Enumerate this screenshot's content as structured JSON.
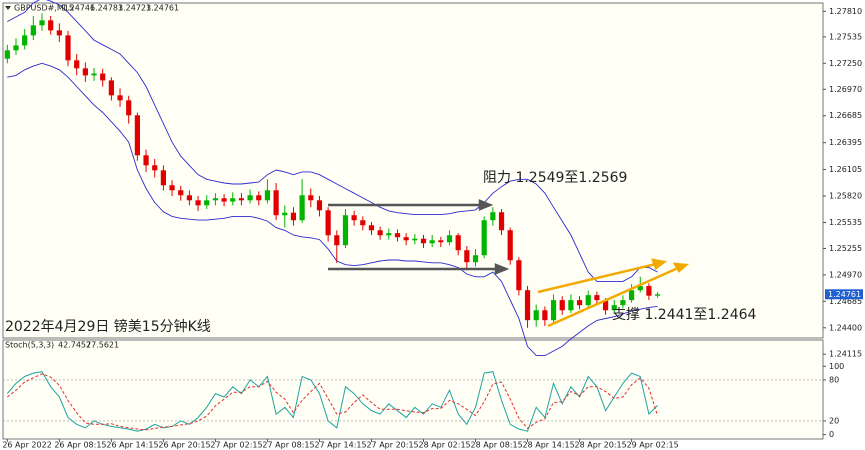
{
  "chart_data": [
    {
      "type": "candlestick",
      "symbol": "GBPUSD#,M15",
      "title": "2022年4月29日 镑美15分钟K线",
      "annotations": [
        "阻力 1.2549至1.2569",
        "支撑 1.2441至1.2464"
      ],
      "categories": [
        "26 Apr 2022",
        null,
        null,
        null,
        null,
        null,
        "26 Apr 08:15",
        null,
        null,
        null,
        null,
        null,
        "26 Apr 14:15",
        null,
        null,
        null,
        null,
        null,
        "26 Apr 20:15",
        null,
        null,
        null,
        null,
        null,
        "27 Apr 02:15",
        null,
        null,
        null,
        null,
        null,
        "27 Apr 08:15",
        null,
        null,
        null,
        null,
        null,
        "27 Apr 14:15",
        null,
        null,
        null,
        null,
        null,
        "27 Apr 20:15",
        null,
        null,
        null,
        null,
        null,
        "28 Apr 02:15",
        null,
        null,
        null,
        null,
        null,
        "28 Apr 08:15",
        null,
        null,
        null,
        null,
        null,
        "28 Apr 14:15",
        null,
        null,
        null,
        null,
        null,
        "28 Apr 20:15",
        null,
        null,
        null,
        null,
        null,
        "29 Apr 02:15",
        null,
        null,
        null
      ],
      "open": [
        1.273,
        1.2739,
        1.27443,
        1.27551,
        1.27659,
        1.27713,
        1.27605,
        1.27551,
        1.27282,
        1.27196,
        1.2712,
        1.2714,
        1.27066,
        1.26905,
        1.26851,
        1.2669,
        1.26259,
        1.26151,
        1.26097,
        1.25936,
        1.25882,
        1.25828,
        1.25774,
        1.2572,
        1.25774,
        1.25796,
        1.2576,
        1.25796,
        1.25774,
        1.25828,
        1.25774,
        1.25882,
        1.25613,
        1.2564,
        1.25559,
        1.25828,
        1.25774,
        1.25666,
        1.25397,
        1.2529,
        1.25613,
        1.25559,
        1.25505,
        1.25451,
        1.25397,
        1.2542,
        1.25376,
        1.25343,
        1.2536,
        1.25311,
        1.25343,
        1.25322,
        1.25397,
        1.25236,
        1.25107,
        1.25182,
        1.25559,
        1.25645,
        1.25451,
        1.25128,
        1.24805,
        1.24482,
        1.24589,
        1.24482,
        1.24698,
        1.24589,
        1.24698,
        1.24644,
        1.24752,
        1.24698,
        1.24589,
        1.24644,
        1.24698,
        1.24805,
        1.2485,
        1.24746
      ],
      "high": [
        1.2745,
        1.2752,
        1.2762,
        1.2776,
        1.2779,
        1.2776,
        1.2768,
        1.276,
        1.2735,
        1.2726,
        1.272,
        1.2719,
        1.271,
        1.2698,
        1.269,
        1.2672,
        1.2632,
        1.2622,
        1.2615,
        1.2599,
        1.2593,
        1.2588,
        1.2582,
        1.2583,
        1.2585,
        1.2584,
        1.2586,
        1.2585,
        1.2589,
        1.2587,
        1.26,
        1.2596,
        1.2572,
        1.257,
        1.26,
        1.259,
        1.2582,
        1.257,
        1.2545,
        1.2568,
        1.2566,
        1.256,
        1.2554,
        1.2549,
        1.2547,
        1.2546,
        1.2542,
        1.2541,
        1.254,
        1.254,
        1.2538,
        1.2545,
        1.2542,
        1.2528,
        1.2525,
        1.256,
        1.257,
        1.2568,
        1.2548,
        1.2516,
        1.2485,
        1.2465,
        1.2463,
        1.2476,
        1.2474,
        1.2476,
        1.2474,
        1.248,
        1.2479,
        1.2472,
        1.247,
        1.2475,
        1.2487,
        1.2495,
        1.2488,
        1.24783
      ],
      "low": [
        1.2725,
        1.2734,
        1.274,
        1.275,
        1.276,
        1.2756,
        1.2748,
        1.2722,
        1.2712,
        1.2705,
        1.2706,
        1.27,
        1.2685,
        1.2678,
        1.266,
        1.262,
        1.2608,
        1.2602,
        1.2588,
        1.2582,
        1.2577,
        1.2572,
        1.2566,
        1.2568,
        1.2572,
        1.2571,
        1.2572,
        1.2572,
        1.2574,
        1.2572,
        1.2574,
        1.2556,
        1.2548,
        1.255,
        1.2553,
        1.257,
        1.256,
        1.2533,
        1.251,
        1.2526,
        1.255,
        1.2545,
        1.254,
        1.2535,
        1.2535,
        1.2533,
        1.2529,
        1.253,
        1.2526,
        1.2527,
        1.2527,
        1.2529,
        1.2518,
        1.2502,
        1.2506,
        1.2515,
        1.255,
        1.254,
        1.2508,
        1.2475,
        1.244,
        1.2441,
        1.2442,
        1.2445,
        1.2454,
        1.2456,
        1.246,
        1.2461,
        1.2465,
        1.2454,
        1.2455,
        1.2461,
        1.2467,
        1.2478,
        1.247,
        1.24723
      ],
      "close": [
        1.2739,
        1.27443,
        1.27551,
        1.27659,
        1.27713,
        1.27605,
        1.27551,
        1.27282,
        1.27196,
        1.2712,
        1.2714,
        1.27066,
        1.26905,
        1.26851,
        1.2669,
        1.26259,
        1.26151,
        1.26097,
        1.25936,
        1.25882,
        1.25828,
        1.25774,
        1.2572,
        1.25774,
        1.25796,
        1.2576,
        1.25796,
        1.25774,
        1.25828,
        1.25774,
        1.25882,
        1.25613,
        1.2564,
        1.25559,
        1.25828,
        1.25774,
        1.25666,
        1.25397,
        1.2529,
        1.25613,
        1.25559,
        1.25505,
        1.25451,
        1.25397,
        1.2542,
        1.25376,
        1.25343,
        1.2536,
        1.25311,
        1.25343,
        1.25322,
        1.25397,
        1.25236,
        1.25107,
        1.25182,
        1.25559,
        1.25645,
        1.25451,
        1.25128,
        1.24805,
        1.24482,
        1.24589,
        1.24482,
        1.24698,
        1.24589,
        1.24698,
        1.24644,
        1.24752,
        1.24698,
        1.24589,
        1.24644,
        1.24698,
        1.24805,
        1.2485,
        1.24746,
        1.24761
      ],
      "up_color": "#00b400",
      "down_color": "#e00000",
      "bands": {
        "color": "#2a2ad0",
        "upper": [
          1.277,
          1.2775,
          1.278,
          1.279,
          1.2795,
          1.2792,
          1.2788,
          1.278,
          1.277,
          1.276,
          1.275,
          1.2745,
          1.274,
          1.2735,
          1.2725,
          1.2715,
          1.27,
          1.268,
          1.266,
          1.264,
          1.2625,
          1.2615,
          1.2605,
          1.26,
          1.2598,
          1.2596,
          1.2595,
          1.2595,
          1.2596,
          1.2597,
          1.2605,
          1.261,
          1.2608,
          1.2605,
          1.2608,
          1.2608,
          1.2605,
          1.26,
          1.2595,
          1.259,
          1.2585,
          1.258,
          1.2575,
          1.257,
          1.2566,
          1.2564,
          1.2563,
          1.2562,
          1.2562,
          1.2562,
          1.2562,
          1.2563,
          1.2565,
          1.2566,
          1.2567,
          1.2575,
          1.2585,
          1.2592,
          1.2598,
          1.26,
          1.26,
          1.2595,
          1.2585,
          1.257,
          1.2555,
          1.254,
          1.252,
          1.25,
          1.249,
          1.249,
          1.249,
          1.249,
          1.2495,
          1.2505,
          1.2505,
          1.25
        ],
        "lower": [
          1.271,
          1.2712,
          1.2718,
          1.2722,
          1.2725,
          1.2722,
          1.2718,
          1.271,
          1.27,
          1.269,
          1.268,
          1.2672,
          1.2662,
          1.2652,
          1.264,
          1.261,
          1.259,
          1.2575,
          1.2565,
          1.256,
          1.2558,
          1.2557,
          1.2556,
          1.2556,
          1.2557,
          1.2558,
          1.256,
          1.256,
          1.256,
          1.2558,
          1.2555,
          1.2548,
          1.2545,
          1.254,
          1.2538,
          1.2537,
          1.2535,
          1.2525,
          1.2512,
          1.2508,
          1.2507,
          1.2508,
          1.251,
          1.2512,
          1.2513,
          1.2513,
          1.2512,
          1.2512,
          1.2511,
          1.251,
          1.251,
          1.2508,
          1.2505,
          1.2498,
          1.2495,
          1.2495,
          1.25,
          1.249,
          1.247,
          1.245,
          1.242,
          1.241,
          1.241,
          1.2415,
          1.242,
          1.2428,
          1.2435,
          1.2442,
          1.2448,
          1.245,
          1.2452,
          1.2455,
          1.2458,
          1.246,
          1.2462,
          1.2463
        ]
      },
      "ylim": [
        1.2429,
        1.279
      ],
      "yticks": [
        {
          "value": 1.2781,
          "label": "1.27810"
        },
        1.27535,
        {
          "value": 1.2725,
          "label": "1.27250"
        },
        {
          "value": 1.2697,
          "label": "1.26970"
        },
        1.26685,
        1.26395,
        1.26105,
        {
          "value": 1.2582,
          "label": "1.25820"
        },
        1.25535,
        1.25255,
        {
          "value": 1.2497,
          "label": "1.24970"
        },
        1.24685,
        {
          "value": 1.244,
          "label": "1.24400"
        },
        1.24115
      ]
    },
    {
      "type": "line",
      "name": "Stoch(5,3,3)",
      "series": [
        {
          "color": "#1fa3a3",
          "values": [
            60,
            75,
            85,
            90,
            92,
            70,
            55,
            25,
            15,
            10,
            20,
            15,
            12,
            10,
            8,
            5,
            8,
            15,
            10,
            12,
            20,
            15,
            25,
            40,
            60,
            55,
            70,
            60,
            80,
            70,
            85,
            30,
            40,
            25,
            85,
            80,
            60,
            20,
            10,
            70,
            60,
            45,
            35,
            30,
            45,
            35,
            25,
            40,
            30,
            45,
            40,
            65,
            30,
            15,
            40,
            90,
            92,
            50,
            15,
            8,
            5,
            40,
            25,
            75,
            45,
            70,
            55,
            85,
            70,
            35,
            55,
            75,
            90,
            85,
            30,
            42.7457
          ]
        },
        {
          "color": "#e03030",
          "dashed": true,
          "values": [
            55,
            65,
            77,
            83,
            89,
            84,
            72,
            50,
            32,
            17,
            15,
            15,
            16,
            12,
            10,
            8,
            7,
            9,
            11,
            12,
            14,
            16,
            20,
            27,
            42,
            52,
            62,
            62,
            70,
            70,
            78,
            62,
            52,
            32,
            50,
            63,
            75,
            53,
            30,
            33,
            47,
            58,
            47,
            37,
            37,
            37,
            35,
            33,
            32,
            38,
            38,
            50,
            45,
            37,
            28,
            48,
            74,
            77,
            52,
            24,
            9,
            18,
            23,
            47,
            48,
            63,
            57,
            70,
            70,
            63,
            53,
            55,
            73,
            83,
            68,
            27.5621
          ]
        }
      ],
      "ylim": [
        -5,
        137
      ],
      "yticks": [
        100,
        80,
        20,
        0
      ],
      "levels": [
        80,
        20
      ]
    }
  ]
}
